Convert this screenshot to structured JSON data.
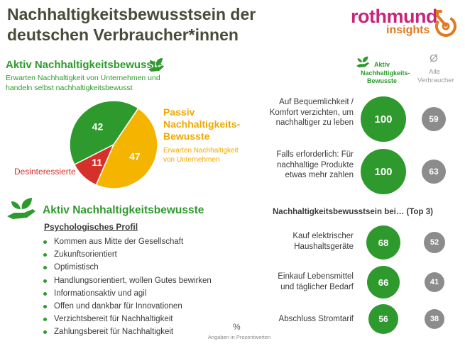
{
  "title": "Nachhaltigkeitsbewusstsein der deutschen Verbraucher*innen",
  "logo": {
    "name": "rothmund",
    "sub": "insights"
  },
  "aktiv": {
    "heading": "Aktiv Nachhaltigkeitsbewusste",
    "sub": "Erwarten Nachhaltigkeit von Unternehmen und handeln selbst nachhaltigkeitsbewusst"
  },
  "passiv": {
    "heading": "Passiv Nachhaltigkeits-Bewusste",
    "sub": "Erwarten Nachhaltigkeit von Unternehmen"
  },
  "desinteressierte": "Desinteressierte",
  "colors": {
    "green": "#2e9a2e",
    "yellow": "#f4b400",
    "red": "#d6302b",
    "grey": "#8c8c8c"
  },
  "profile": {
    "heading": "Aktiv Nachhaltigkeitsbewusste",
    "subheading": "Psychologisches Profil",
    "items": [
      "Kommen aus Mitte der Gesellschaft",
      "Zukunftsorientiert",
      "Optimistisch",
      "Handlungsorientiert, wollen Gutes bewirken",
      "Informationsaktiv und agil",
      "Offen und dankbar für Innovationen",
      "Verzichtsbereit für Nachhaltigkeit",
      "Zahlungsbereit für Nachhaltigkeit"
    ]
  },
  "columns": {
    "aktiv": "Aktiv Nachhaltigkeits-Bewusste",
    "alle_symbol": "Ø",
    "alle": "Alle Verbraucher"
  },
  "section2_title": "Nachhaltigkeitsbewusstsein bei… (Top 3)",
  "note": {
    "symbol": "%",
    "text": "Angaben in Prozentwerten"
  },
  "chart_data": [
    {
      "type": "pie",
      "categories": [
        "Aktiv Nachhaltigkeitsbewusste",
        "Passiv Nachhaltigkeits-Bewusste",
        "Desinteressierte"
      ],
      "values": [
        42,
        47,
        11
      ],
      "labels": [
        "42",
        "47",
        "11"
      ]
    },
    {
      "type": "table",
      "categories": [
        "Auf Bequemlichkeit / Komfort verzichten, um nachhaltiger zu leben",
        "Falls erforderlich: Für nachhaltige Produkte etwas mehr zahlen"
      ],
      "series": [
        {
          "name": "Aktiv Nachhaltigkeits-Bewusste",
          "values": [
            100,
            100
          ],
          "labels": [
            "100",
            "100"
          ]
        },
        {
          "name": "Alle Verbraucher",
          "values": [
            59,
            63
          ],
          "labels": [
            "59",
            "63"
          ]
        }
      ]
    },
    {
      "type": "table",
      "title": "Nachhaltigkeitsbewusstsein bei… (Top 3)",
      "categories": [
        "Kauf elektrischer Haushaltsgeräte",
        "Einkauf Lebensmittel und täglicher Bedarf",
        "Abschluss Stromtarif"
      ],
      "series": [
        {
          "name": "Aktiv Nachhaltigkeits-Bewusste",
          "values": [
            68,
            66,
            56
          ],
          "labels": [
            "68",
            "66",
            "56"
          ]
        },
        {
          "name": "Alle Verbraucher",
          "values": [
            52,
            41,
            38
          ],
          "labels": [
            "52",
            "41",
            "38"
          ]
        }
      ]
    }
  ]
}
